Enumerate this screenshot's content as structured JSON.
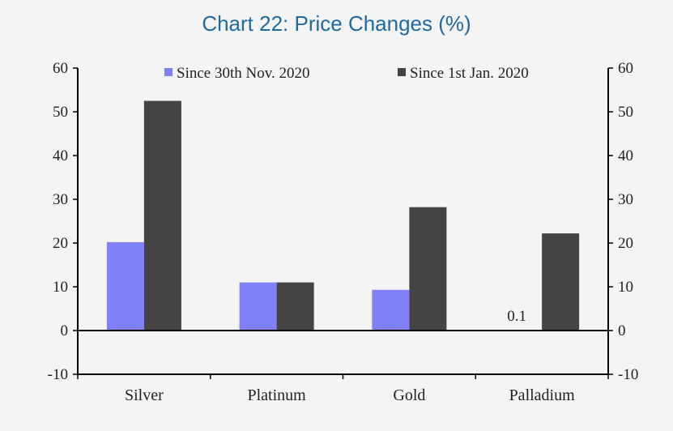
{
  "chart_data": {
    "type": "bar",
    "title": "Chart 22: Price Changes (%)",
    "categories": [
      "Silver",
      "Platinum",
      "Gold",
      "Palladium"
    ],
    "series": [
      {
        "name": "Since 30th Nov. 2020",
        "values": [
          20.2,
          11.0,
          9.3,
          0.1
        ],
        "color": "#8080f8"
      },
      {
        "name": "Since 1st Jan. 2020",
        "values": [
          52.5,
          11.0,
          28.2,
          22.2
        ],
        "color": "#444444"
      }
    ],
    "ylim": [
      -10,
      60
    ],
    "yticks": [
      -10,
      0,
      10,
      20,
      30,
      40,
      50,
      60
    ],
    "secondary_yticks": [
      -10,
      0,
      10,
      20,
      30,
      40,
      50,
      60
    ],
    "annotations": [
      {
        "category": "Palladium",
        "series": 0,
        "text": "0.1"
      }
    ],
    "legend_position": "top",
    "grid": false
  }
}
